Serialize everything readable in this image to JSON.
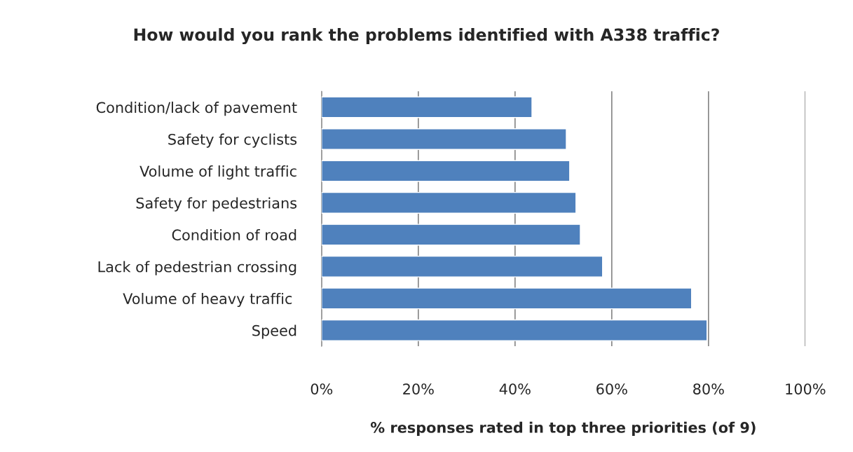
{
  "chart_data": {
    "type": "bar",
    "orientation": "horizontal",
    "title": "How would you rank the problems identified with A338 traffic?",
    "xlabel": "% responses rated in top three priorities (of 9)",
    "categories": [
      "Condition/lack of pavement",
      "Safety for cyclists",
      "Volume of light traffic",
      "Safety for pedestrians",
      "Condition of road",
      "Lack of pedestrian crossing",
      "Volume of heavy traffic ",
      "Speed"
    ],
    "values": [
      43.5,
      50.6,
      51.3,
      52.6,
      53.5,
      58.1,
      76.5,
      79.7
    ],
    "color": "#4f81bd",
    "xlim": [
      0,
      100
    ],
    "xticks": [
      {
        "value": 0,
        "label": "0%"
      },
      {
        "value": 20,
        "label": "20%"
      },
      {
        "value": 40,
        "label": "40%"
      },
      {
        "value": 60,
        "label": "60%"
      },
      {
        "value": 80,
        "label": "80%"
      },
      {
        "value": 100,
        "label": "100%"
      }
    ],
    "grid": "x",
    "legend": false
  }
}
